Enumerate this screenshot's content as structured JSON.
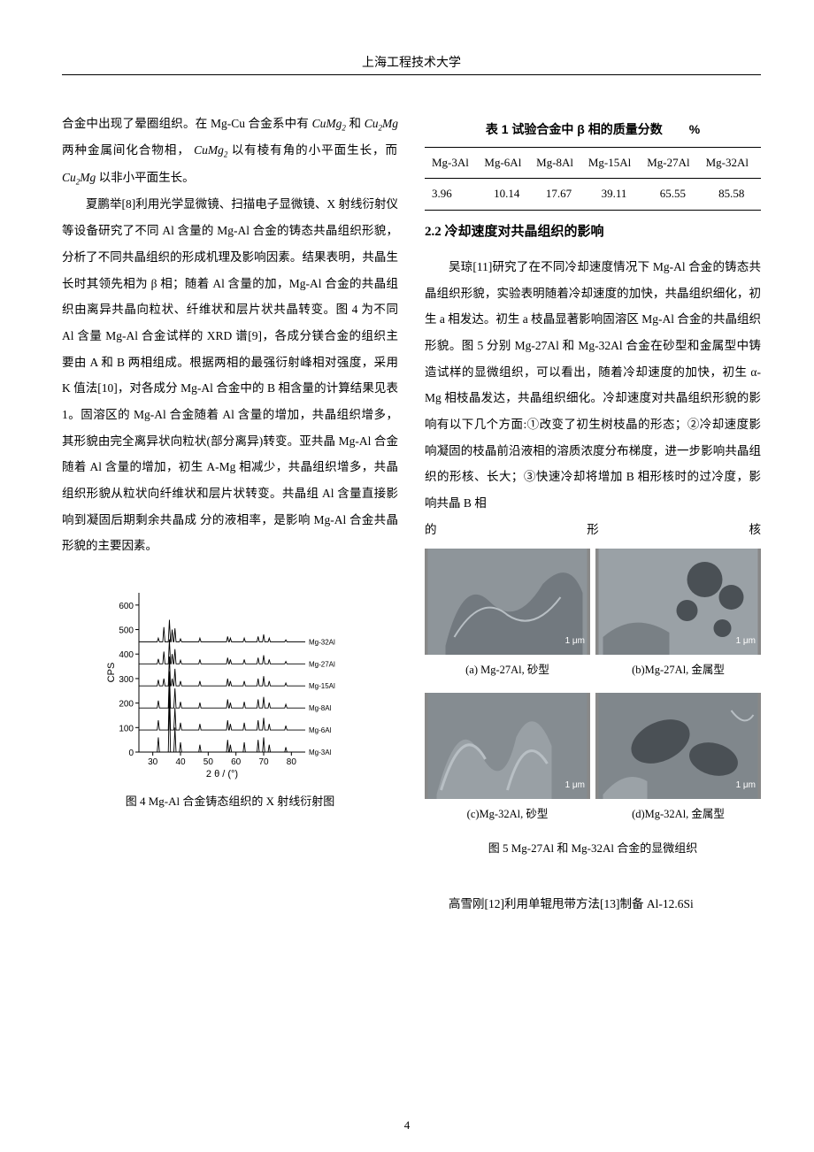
{
  "header": {
    "university": "上海工程技术大学"
  },
  "left": {
    "p1a": "合金中出现了晕圈组织。在 Mg-Cu 合金系中有 ",
    "cumg2": "CuMg",
    "and": " 和 ",
    "cu2mg": "Cu",
    "mg": "Mg",
    "p1b": " 两种金属间化合物相，",
    "p1c": " 以有棱有角的小平面生长，而 ",
    "p1d": " 以非小平面生长。",
    "p2": "夏鹏举[8]利用光学显微镜、扫描电子显微镜、X 射线衍射仪等设备研究了不同 Al 含量的 Mg-Al 合金的铸态共晶组织形貌，分析了不同共晶组织的形成机理及影响因素。结果表明，共晶生长时其领先相为 β 相；随着 Al 含量的加，Mg-Al 合金的共晶组织由离异共晶向粒状、纤维状和层片状共晶转变。图 4 为不同 Al 含量 Mg-Al 合金试样的 XRD 谱[9]，各成分镁合金的组织主要由 A 和 B 两相组成。根据两相的最强衍射峰相对强度，采用 K 值法[10]，对各成分 Mg-Al 合金中的 B 相含量的计算结果见表 1。固溶区的 Mg-Al 合金随着 Al 含量的增加，共晶组织增多，其形貌由完全离异状向粒状(部分离异)转变。亚共晶 Mg-Al 合金随着 Al 含量的增加，初生 A-Mg 相减少，共晶组织增多，共晶组织形貌从粒状向纤维状和层片状转变。共晶组 Al 含量直接影响到凝固后期剩余共晶成 分的液相率，是影响 Mg-Al 合金共晶形貌的主要因素。"
  },
  "fig4": {
    "caption": "图 4  Mg-Al 合金铸态组织的 X 射线衍射图",
    "ylabel": "CPS",
    "xlabel": "2 θ / (°)",
    "xticks": [
      30,
      40,
      50,
      60,
      70,
      80
    ],
    "yticks": [
      0,
      100,
      200,
      300,
      400,
      500,
      600
    ],
    "series_labels": [
      "Mg-3Al",
      "Mg-6Al",
      "Mg-8Al",
      "Mg-15Al",
      "Mg-27Al",
      "Mg-32Al"
    ],
    "line_color": "#000000",
    "tick_color": "#000000",
    "peaks": {
      "x": [
        32,
        34,
        36,
        37,
        38,
        40,
        47,
        57,
        58,
        63,
        68,
        70,
        72,
        78
      ],
      "heights": [
        [
          60,
          0,
          220,
          0,
          100,
          40,
          30,
          50,
          30,
          40,
          50,
          60,
          30,
          20
        ],
        [
          40,
          0,
          180,
          0,
          90,
          30,
          25,
          40,
          25,
          30,
          40,
          50,
          25,
          18
        ],
        [
          30,
          0,
          150,
          0,
          80,
          25,
          22,
          35,
          22,
          25,
          35,
          45,
          22,
          15
        ],
        [
          25,
          30,
          120,
          30,
          70,
          20,
          20,
          30,
          20,
          20,
          30,
          40,
          20,
          12
        ],
        [
          20,
          50,
          100,
          40,
          60,
          15,
          18,
          25,
          18,
          18,
          25,
          35,
          18,
          10
        ],
        [
          15,
          60,
          90,
          50,
          55,
          12,
          15,
          22,
          15,
          15,
          22,
          30,
          15,
          8
        ]
      ]
    },
    "xlim": [
      25,
      85
    ],
    "ylim": [
      0,
      650
    ],
    "offset_step": 90
  },
  "table1": {
    "title_main": "表 1  试验合金中 β 相的质量分数",
    "title_unit": "%",
    "headers": [
      "Mg-3Al",
      "Mg-6Al",
      "Mg-8Al",
      "Mg-15Al",
      "Mg-27Al",
      "Mg-32Al"
    ],
    "values": [
      "3.96",
      "10.14",
      "17.67",
      "39.11",
      "65.55",
      "85.58"
    ]
  },
  "right": {
    "heading": "2.2 冷却速度对共晶组织的影响",
    "p1": "吴琼[11]研究了在不同冷却速度情况下 Mg-Al 合金的铸态共晶组织形貌，实验表明随着冷却速度的加快，共晶组织细化，初生 a 相发达。初生 a 枝晶显著影响固溶区 Mg-Al 合金的共晶组织形貌。图 5 分别 Mg-27Al 和 Mg-32Al 合金在砂型和金属型中铸造试样的显微组织，可以看出，随着冷却速度的加快，初生 α-Mg 相枝晶发达，共晶组织细化。冷却速度对共晶组织形貌的影响有以下几个方面:①改变了初生树枝晶的形态；②冷却速度影响凝固的枝晶前沿液相的溶质浓度分布梯度，进一步影响共晶组织的形核、长大；③快速冷却将增加 B 相形核时的过冷度，影响共晶 B 相",
    "spread_a": "的",
    "spread_b": "形",
    "spread_c": "核",
    "p2": "高雪刚[12]利用单辊甩带方法[13]制备 Al-12.6Si"
  },
  "fig5": {
    "scale": "1 μm",
    "a": "(a) Mg-27Al, 砂型",
    "b": "(b)Mg-27Al, 金属型",
    "c": "(c)Mg-32Al, 砂型",
    "d": "(d)Mg-32Al, 金属型",
    "caption": "图 5 Mg-27Al 和 Mg-32Al 合金的显微组织",
    "bg_ab": "#8a9196",
    "bg_cd": "#7c8388"
  },
  "pagenum": "4"
}
